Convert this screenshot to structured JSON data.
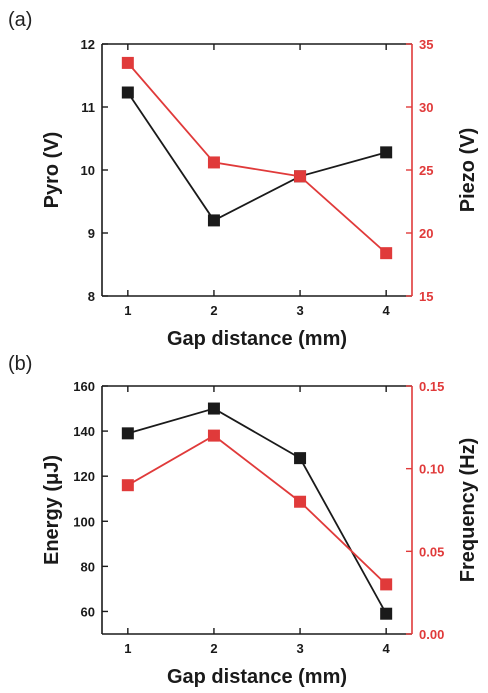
{
  "colors": {
    "black": "#1a1a1a",
    "red": "#e03a3a"
  },
  "chart_data": [
    {
      "panel_label": "(a)",
      "type": "line",
      "categories": [
        1,
        2,
        3,
        4
      ],
      "xlabel": "Gap distance (mm)",
      "ylabel_left": "Pyro (V)",
      "ylabel_right": "Piezo (V)",
      "ylim_left": [
        8,
        12
      ],
      "ylim_right": [
        15,
        35
      ],
      "yticks_left": [
        8,
        9,
        10,
        11,
        12
      ],
      "yticks_right": [
        15,
        20,
        25,
        30,
        35
      ],
      "series": [
        {
          "axis": "left",
          "color": "#1a1a1a",
          "marker": "square",
          "values": [
            11.23,
            9.2,
            9.9,
            10.28
          ]
        },
        {
          "axis": "right",
          "color": "#e03a3a",
          "marker": "square",
          "values": [
            33.5,
            25.6,
            24.5,
            18.4
          ]
        }
      ],
      "grid": false
    },
    {
      "panel_label": "(b)",
      "type": "line",
      "categories": [
        1,
        2,
        3,
        4
      ],
      "xlabel": "Gap distance (mm)",
      "ylabel_left": "Energy (μJ)",
      "ylabel_right": "Frequency (Hz)",
      "ylim_left": [
        50,
        160
      ],
      "ylim_right": [
        0,
        0.15
      ],
      "yticks_left": [
        60,
        80,
        100,
        120,
        140,
        160
      ],
      "yticks_right": [
        "0.00",
        "0.05",
        "0.10",
        "0.15"
      ],
      "series": [
        {
          "axis": "left",
          "color": "#1a1a1a",
          "marker": "square",
          "values": [
            139,
            150,
            128,
            59
          ]
        },
        {
          "axis": "right",
          "color": "#e03a3a",
          "marker": "square",
          "values": [
            0.09,
            0.12,
            0.08,
            0.03
          ]
        }
      ],
      "grid": false
    }
  ]
}
